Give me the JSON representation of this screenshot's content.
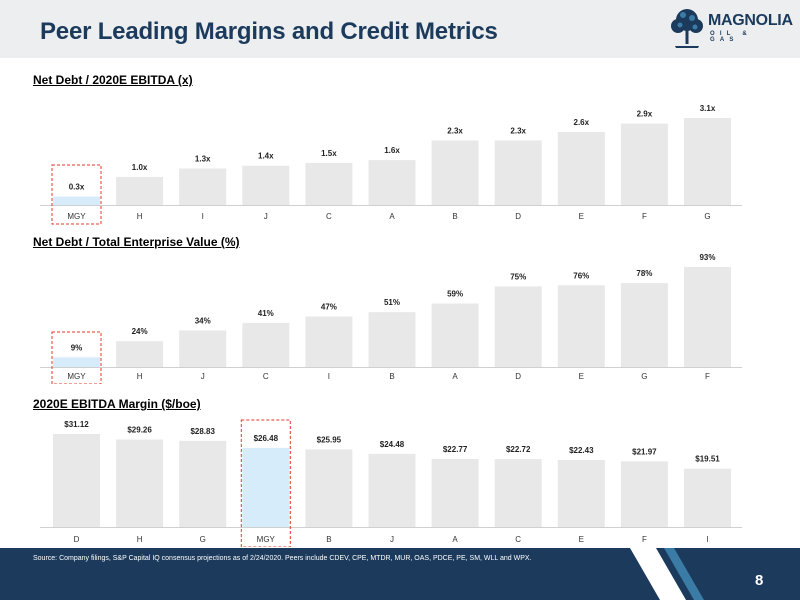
{
  "slide": {
    "title": "Peer Leading Margins and Credit Metrics",
    "source": "Source: Company filings, S&P Capital IQ consensus projections as of 2/24/2020. Peers include CDEV, CPE, MTDR, MUR, OAS, PDCE, PE, SM, WLL and WPX.",
    "page_number": "8"
  },
  "logo": {
    "name": "MAGNOLIA",
    "sub": "OIL & GAS",
    "icon": "tree-icon"
  },
  "colors": {
    "bar": "#e8e8e8",
    "highlight_bar": "#d6ecfa",
    "highlight_border": "#e0392b",
    "navy": "#1b3a5c",
    "teal": "#3a7ca5"
  },
  "chart_data": [
    {
      "type": "bar",
      "title": "Net Debt / 2020E EBITDA (x)",
      "categories": [
        "MGY",
        "H",
        "I",
        "J",
        "C",
        "A",
        "B",
        "D",
        "E",
        "F",
        "G"
      ],
      "values": [
        0.3,
        1.0,
        1.3,
        1.4,
        1.5,
        1.6,
        2.3,
        2.3,
        2.6,
        2.9,
        3.1
      ],
      "labels": [
        "0.3x",
        "1.0x",
        "1.3x",
        "1.4x",
        "1.5x",
        "1.6x",
        "2.3x",
        "2.3x",
        "2.6x",
        "2.9x",
        "3.1x"
      ],
      "highlight": "MGY",
      "ylim": [
        0,
        3.1
      ]
    },
    {
      "type": "bar",
      "title": "Net Debt / Total Enterprise Value (%)",
      "categories": [
        "MGY",
        "H",
        "J",
        "C",
        "I",
        "B",
        "A",
        "D",
        "E",
        "G",
        "F"
      ],
      "values": [
        9,
        24,
        34,
        41,
        47,
        51,
        59,
        75,
        76,
        78,
        93
      ],
      "labels": [
        "9%",
        "24%",
        "34%",
        "41%",
        "47%",
        "51%",
        "59%",
        "75%",
        "76%",
        "78%",
        "93%"
      ],
      "highlight": "MGY",
      "ylim": [
        0,
        93
      ]
    },
    {
      "type": "bar",
      "title": "2020E EBITDA Margin ($/boe)",
      "categories": [
        "D",
        "H",
        "G",
        "MGY",
        "B",
        "J",
        "A",
        "C",
        "E",
        "F",
        "I"
      ],
      "values": [
        31.12,
        29.26,
        28.83,
        26.48,
        25.95,
        24.48,
        22.77,
        22.72,
        22.43,
        21.97,
        19.51
      ],
      "labels": [
        "$31.12",
        "$29.26",
        "$28.83",
        "$26.48",
        "$25.95",
        "$24.48",
        "$22.77",
        "$22.72",
        "$22.43",
        "$21.97",
        "$19.51"
      ],
      "highlight": "MGY",
      "ylim": [
        0,
        31.12
      ]
    }
  ]
}
